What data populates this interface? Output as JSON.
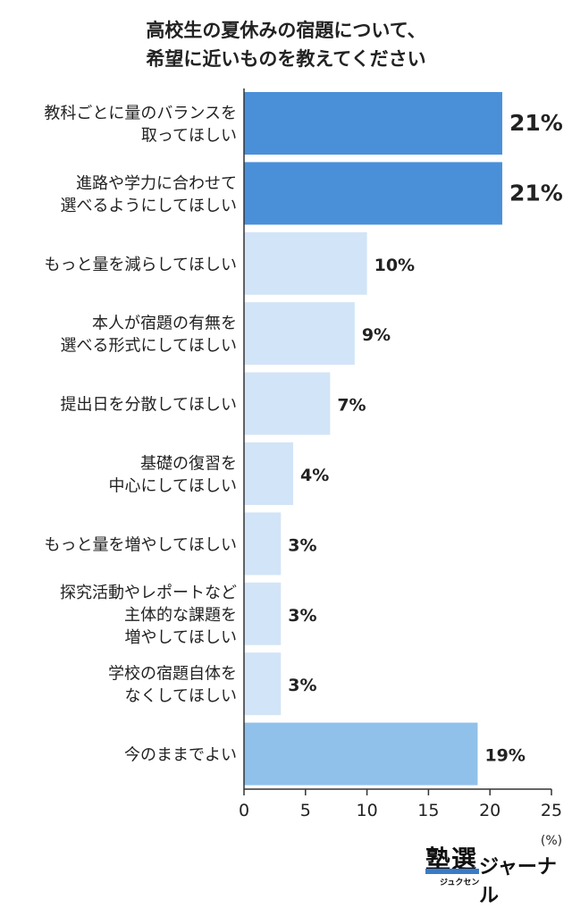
{
  "title_lines": [
    "高校生の夏休みの宿題について、",
    "希望に近いものを教えてください"
  ],
  "chart_data": {
    "type": "bar",
    "orientation": "horizontal",
    "categories": [
      "教科ごとに量のバランスを\n取ってほしい",
      "進路や学力に合わせて\n選べるようにしてほしい",
      "もっと量を減らしてほしい",
      "本人が宿題の有無を\n選べる形式にしてほしい",
      "提出日を分散してほしい",
      "基礎の復習を\n中心にしてほしい",
      "もっと量を増やしてほしい",
      "探究活動やレポートなど\n主体的な課題を\n増やしてほしい",
      "学校の宿題自体を\nなくしてほしい",
      "今のままでよい"
    ],
    "values": [
      21,
      21,
      10,
      9,
      7,
      4,
      3,
      3,
      3,
      19
    ],
    "value_labels": [
      "21%",
      "21%",
      "10%",
      "9%",
      "7%",
      "4%",
      "3%",
      "3%",
      "3%",
      "19%"
    ],
    "bar_colors": [
      "#4a90d9",
      "#4a90d9",
      "#d2e4f7",
      "#d2e4f7",
      "#d2e4f7",
      "#d2e4f7",
      "#d2e4f7",
      "#d2e4f7",
      "#d2e4f7",
      "#8fc1ea"
    ],
    "xlim": [
      0,
      25
    ],
    "xticks": [
      0,
      5,
      10,
      15,
      20,
      25
    ],
    "xticklabels": [
      "0",
      "5",
      "10",
      "15",
      "20",
      "25"
    ],
    "unit_label": "(%)",
    "grid": false
  },
  "brand": {
    "logo_text": "塾選",
    "logo_kana": "ジャーナル",
    "logo_sub": "ジュクセン"
  }
}
